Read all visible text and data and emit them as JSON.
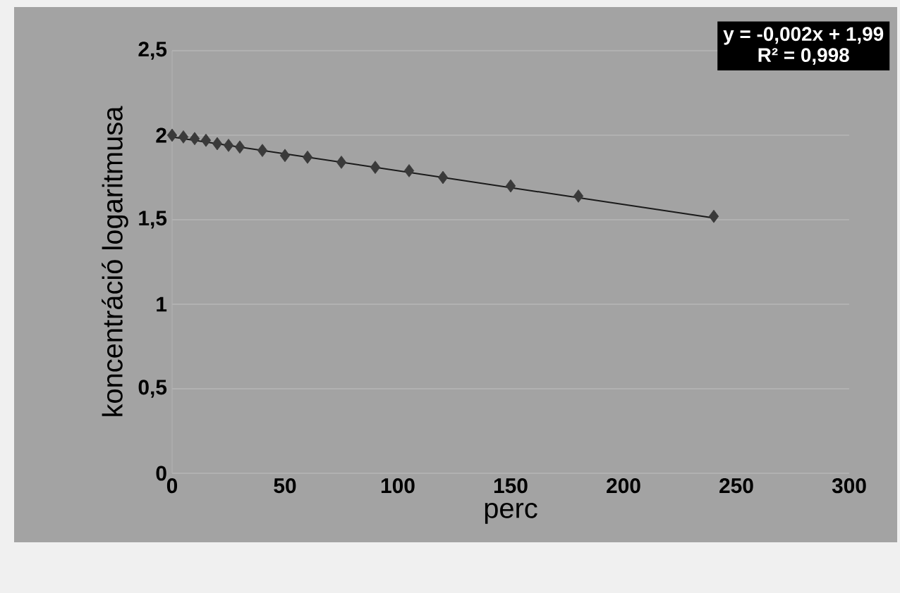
{
  "chart_data": {
    "type": "scatter",
    "xlabel": "perc",
    "ylabel": "koncentráció logaritmusa",
    "annotations": [
      "y = -0,002x + 1,99",
      "R² = 0,998"
    ],
    "xlim": [
      0,
      300
    ],
    "xticks": [
      0,
      50,
      100,
      150,
      200,
      250,
      300
    ],
    "ylim": [
      0,
      2.5
    ],
    "yticks": [
      0,
      {
        "value": 0.5,
        "label": "0,5"
      },
      1,
      {
        "value": 1.5,
        "label": "1,5"
      },
      2,
      {
        "value": 2.5,
        "label": "2,5"
      }
    ],
    "grid": "y",
    "series": [
      {
        "color": "#3a3a3a",
        "marker": "diamond",
        "x": [
          0,
          5,
          10,
          15,
          20,
          25,
          30,
          40,
          50,
          60,
          75,
          90,
          105,
          120,
          150,
          180,
          240
        ],
        "values": [
          2.0,
          1.99,
          1.98,
          1.97,
          1.95,
          1.94,
          1.93,
          1.91,
          1.88,
          1.87,
          1.84,
          1.81,
          1.79,
          1.75,
          1.7,
          1.64,
          1.52
        ]
      },
      {
        "type": "line",
        "color": "#1a1a1a",
        "x": [
          0,
          240
        ],
        "values": [
          1.99,
          1.51
        ]
      }
    ]
  }
}
